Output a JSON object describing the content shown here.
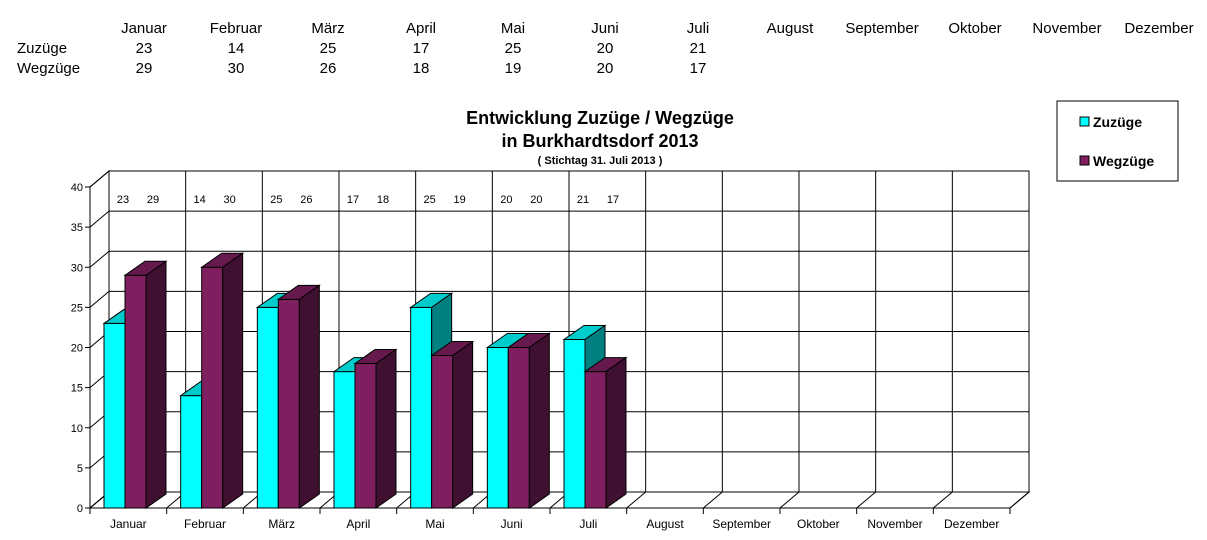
{
  "table": {
    "months": [
      "Januar",
      "Februar",
      "März",
      "April",
      "Mai",
      "Juni",
      "Juli",
      "August",
      "September",
      "Oktober",
      "November",
      "Dezember"
    ],
    "rows": [
      {
        "label": "Zuzüge",
        "values": [
          "23",
          "14",
          "25",
          "17",
          "25",
          "20",
          "21"
        ]
      },
      {
        "label": "Wegzüge",
        "values": [
          "29",
          "30",
          "26",
          "18",
          "19",
          "20",
          "17"
        ]
      }
    ]
  },
  "chart_data": {
    "type": "bar",
    "title_line1": "Entwicklung Zuzüge / Wegzüge",
    "title_line2": "in Burkhardtsdorf 2013",
    "subtitle": "( Stichtag 31. Juli 2013 )",
    "categories": [
      "Januar",
      "Februar",
      "März",
      "April",
      "Mai",
      "Juni",
      "Juli",
      "August",
      "September",
      "Oktober",
      "November",
      "Dezember"
    ],
    "series": [
      {
        "name": "Zuzüge",
        "values": [
          23,
          14,
          25,
          17,
          25,
          20,
          21,
          null,
          null,
          null,
          null,
          null
        ],
        "color": "#00FFFF"
      },
      {
        "name": "Wegzüge",
        "values": [
          29,
          30,
          26,
          18,
          19,
          20,
          17,
          null,
          null,
          null,
          null,
          null
        ],
        "color": "#7F1F5F"
      }
    ],
    "ylim": [
      0,
      40
    ],
    "yticks": [
      0,
      5,
      10,
      15,
      20,
      25,
      30,
      35,
      40
    ],
    "grid": true,
    "legend_position": "top-right",
    "style": "3d-clustered-column"
  }
}
